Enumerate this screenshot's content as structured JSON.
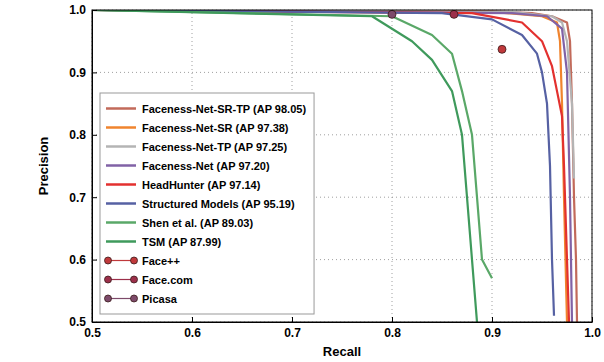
{
  "chart_data": {
    "type": "line",
    "xlabel": "Recall",
    "ylabel": "Precision",
    "xlim": [
      0.5,
      1
    ],
    "ylim": [
      0.5,
      1
    ],
    "xticks": [
      0.5,
      0.6,
      0.7,
      0.8,
      0.9,
      {
        "value": 1,
        "label": "1.0"
      }
    ],
    "yticks": [
      0.5,
      0.6,
      0.7,
      0.8,
      0.9,
      {
        "value": 1,
        "label": "1.0"
      }
    ],
    "grid": true,
    "legend": "lower left",
    "series": [
      {
        "name": "Faceness-Net-SR-TP (AP 98.05)",
        "color": "#c26a5a",
        "x": [
          0.5,
          0.9,
          0.94,
          0.96,
          0.975,
          0.978,
          0.98,
          0.982,
          0.984,
          0.985
        ],
        "values": [
          1,
          0.998,
          0.995,
          0.99,
          0.98,
          0.95,
          0.85,
          0.7,
          0.6,
          0.5
        ]
      },
      {
        "name": "Faceness-Net-SR (AP 97.38)",
        "color": "#f0842e",
        "x": [
          0.5,
          0.9,
          0.95,
          0.965,
          0.968,
          0.97,
          0.972,
          0.975
        ],
        "values": [
          1,
          0.997,
          0.99,
          0.98,
          0.95,
          0.85,
          0.7,
          0.5
        ]
      },
      {
        "name": "Faceness-Net-TP (AP 97.25)",
        "color": "#b4b4b4",
        "x": [
          0.5,
          0.92,
          0.96,
          0.97,
          0.975,
          0.98,
          0.982
        ],
        "values": [
          1,
          0.997,
          0.99,
          0.98,
          0.95,
          0.85,
          0.73
        ]
      },
      {
        "name": "Faceness-Net (AP 97.20)",
        "color": "#8162a6",
        "x": [
          0.5,
          0.92,
          0.955,
          0.97,
          0.975,
          0.978,
          0.98
        ],
        "values": [
          1,
          0.995,
          0.99,
          0.97,
          0.9,
          0.7,
          0.5
        ]
      },
      {
        "name": "HeadHunter (AP 97.14)",
        "color": "#e3312f",
        "x": [
          0.5,
          0.88,
          0.93,
          0.95,
          0.96,
          0.965,
          0.97,
          0.972,
          0.975,
          0.977
        ],
        "values": [
          1,
          0.995,
          0.98,
          0.95,
          0.91,
          0.87,
          0.83,
          0.75,
          0.6,
          0.5
        ]
      },
      {
        "name": "Structured Models (AP 95.19)",
        "color": "#5661a3",
        "x": [
          0.5,
          0.85,
          0.9,
          0.93,
          0.945,
          0.95,
          0.955,
          0.958,
          0.96,
          0.962
        ],
        "values": [
          1,
          0.995,
          0.985,
          0.96,
          0.93,
          0.9,
          0.85,
          0.75,
          0.6,
          0.51
        ]
      },
      {
        "name": "Shen et al. (AP 89.03)",
        "color": "#5aa868",
        "x": [
          0.5,
          0.8,
          0.84,
          0.86,
          0.87,
          0.88,
          0.885,
          0.89,
          0.9
        ],
        "values": [
          1,
          0.99,
          0.96,
          0.93,
          0.87,
          0.8,
          0.7,
          0.6,
          0.57
        ]
      },
      {
        "name": "TSM (AP 87.99)",
        "color": "#3f9a5c",
        "x": [
          0.5,
          0.78,
          0.82,
          0.84,
          0.86,
          0.87,
          0.875,
          0.88,
          0.885
        ],
        "values": [
          1,
          0.99,
          0.95,
          0.92,
          0.87,
          0.8,
          0.7,
          0.6,
          0.5
        ]
      },
      {
        "name": "Face++",
        "type": "scatter",
        "marker": "o",
        "color": "#c0393b",
        "x": [
          0.91
        ],
        "values": [
          0.937
        ]
      },
      {
        "name": "Face.com",
        "type": "scatter",
        "marker": "o",
        "color": "#9c2f4a",
        "x": [
          0.862
        ],
        "values": [
          0.993
        ]
      },
      {
        "name": "Picasa",
        "type": "scatter",
        "marker": "o",
        "color": "#7d4a6a",
        "x": [
          0.8
        ],
        "values": [
          0.993
        ]
      }
    ]
  }
}
